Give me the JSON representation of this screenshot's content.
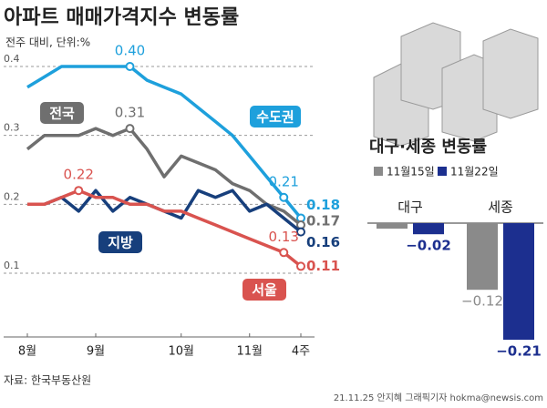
{
  "chart_data": [
    {
      "type": "line",
      "title": "아파트 매매가격지수 변동률",
      "subtitle": "전주 대비, 단위:%",
      "source": "자료: 한국부동산원",
      "credit": "21.11.25 안지혜 그래픽기자 hokma@newsis.com",
      "categories": [
        "8월",
        null,
        null,
        null,
        "9월",
        null,
        null,
        null,
        null,
        "10월",
        null,
        null,
        null,
        "11월",
        null,
        null,
        "4주"
      ],
      "ylim": [
        0.05,
        0.45
      ],
      "yticks": [
        0.1,
        0.2,
        0.3,
        0.4
      ],
      "grid": true,
      "series": [
        {
          "name": "수도권",
          "color": "#1ea0dc",
          "values": [
            0.37,
            0.385,
            0.4,
            0.4,
            0.4,
            0.4,
            0.4,
            0.38,
            0.37,
            0.36,
            0.34,
            0.32,
            0.3,
            0.27,
            0.24,
            0.21,
            0.18
          ],
          "value_labels": [
            null,
            null,
            null,
            null,
            null,
            null,
            "0.40",
            null,
            null,
            null,
            null,
            null,
            null,
            null,
            null,
            "0.21",
            "0.18"
          ]
        },
        {
          "name": "전국",
          "color": "#6f6f6f",
          "values": [
            0.28,
            0.3,
            0.3,
            0.3,
            0.31,
            0.3,
            0.31,
            0.28,
            0.24,
            0.27,
            0.26,
            0.25,
            0.23,
            0.22,
            0.2,
            0.19,
            0.17
          ],
          "value_labels": [
            null,
            null,
            null,
            null,
            null,
            null,
            "0.31",
            null,
            null,
            null,
            null,
            null,
            null,
            null,
            null,
            null,
            "0.17"
          ]
        },
        {
          "name": "지방",
          "color": "#173f7c",
          "values": [
            0.2,
            0.2,
            0.21,
            0.19,
            0.22,
            0.19,
            0.21,
            0.2,
            0.19,
            0.18,
            0.22,
            0.21,
            0.22,
            0.19,
            0.2,
            0.18,
            0.16
          ],
          "value_labels": [
            null,
            null,
            null,
            null,
            null,
            null,
            null,
            null,
            null,
            null,
            null,
            null,
            null,
            null,
            null,
            null,
            "0.16"
          ]
        },
        {
          "name": "서울",
          "color": "#d9534f",
          "values": [
            0.2,
            0.2,
            0.21,
            0.22,
            0.21,
            0.21,
            0.2,
            0.2,
            0.19,
            0.19,
            0.18,
            0.17,
            0.16,
            0.15,
            0.14,
            0.13,
            0.11
          ],
          "value_labels": [
            null,
            null,
            null,
            "0.22",
            null,
            null,
            null,
            null,
            null,
            null,
            null,
            null,
            null,
            null,
            null,
            "0.13",
            "0.11"
          ]
        }
      ]
    },
    {
      "type": "bar",
      "title": "대구·세종 변동률",
      "categories": [
        "대구",
        "세종"
      ],
      "series": [
        {
          "name": "11월15일",
          "color": "#8a8a8a",
          "values": [
            -0.01,
            -0.12
          ],
          "value_labels": [
            null,
            "−0.12"
          ]
        },
        {
          "name": "11월22일",
          "color": "#1c2f8f",
          "values": [
            -0.02,
            -0.21
          ],
          "value_labels": [
            "−0.02",
            "−0.21"
          ]
        }
      ]
    }
  ]
}
